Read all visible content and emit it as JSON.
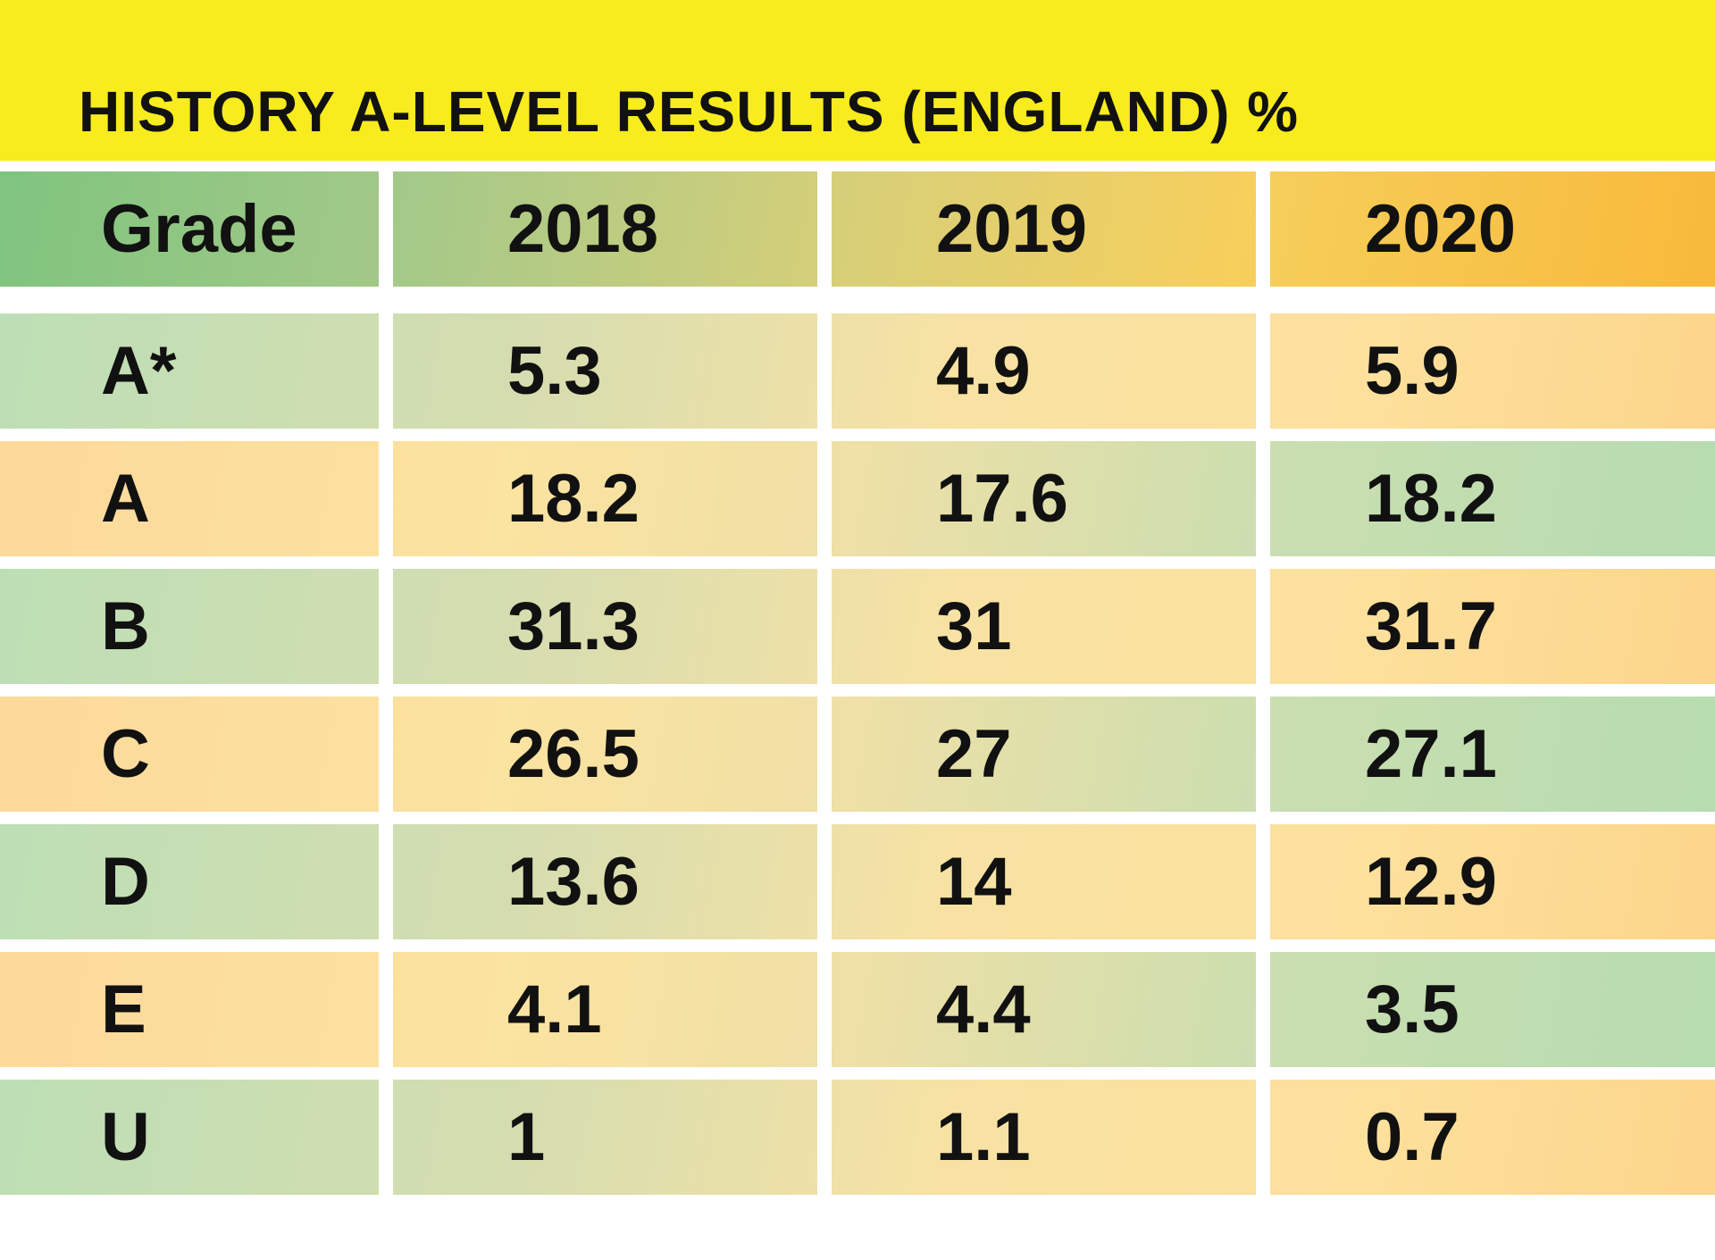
{
  "chart_data": {
    "type": "table",
    "title": "HISTORY A-LEVEL RESULTS (ENGLAND) %",
    "columns": [
      "Grade",
      "2018",
      "2019",
      "2020"
    ],
    "rows": [
      [
        "A*",
        "5.3",
        "4.9",
        "5.9"
      ],
      [
        "A",
        "18.2",
        "17.6",
        "18.2"
      ],
      [
        "B",
        "31.3",
        "31",
        "31.7"
      ],
      [
        "C",
        "26.5",
        "27",
        "27.1"
      ],
      [
        "D",
        "13.6",
        "14",
        "12.9"
      ],
      [
        "E",
        "4.1",
        "4.4",
        "3.5"
      ],
      [
        "U",
        "1",
        "1.1",
        "0.7"
      ]
    ],
    "colors": {
      "title_bg": "#f8eb1e",
      "green": "#7fc47f",
      "orange": "#f8b93a"
    }
  }
}
